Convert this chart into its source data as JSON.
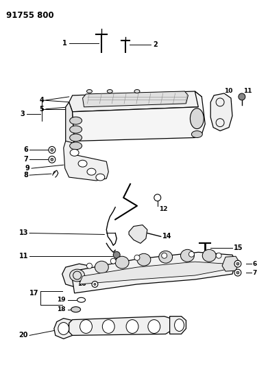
{
  "title": "91755 800",
  "background_color": "#ffffff",
  "line_color": "#000000",
  "figsize": [
    3.91,
    5.33
  ],
  "dpi": 100
}
